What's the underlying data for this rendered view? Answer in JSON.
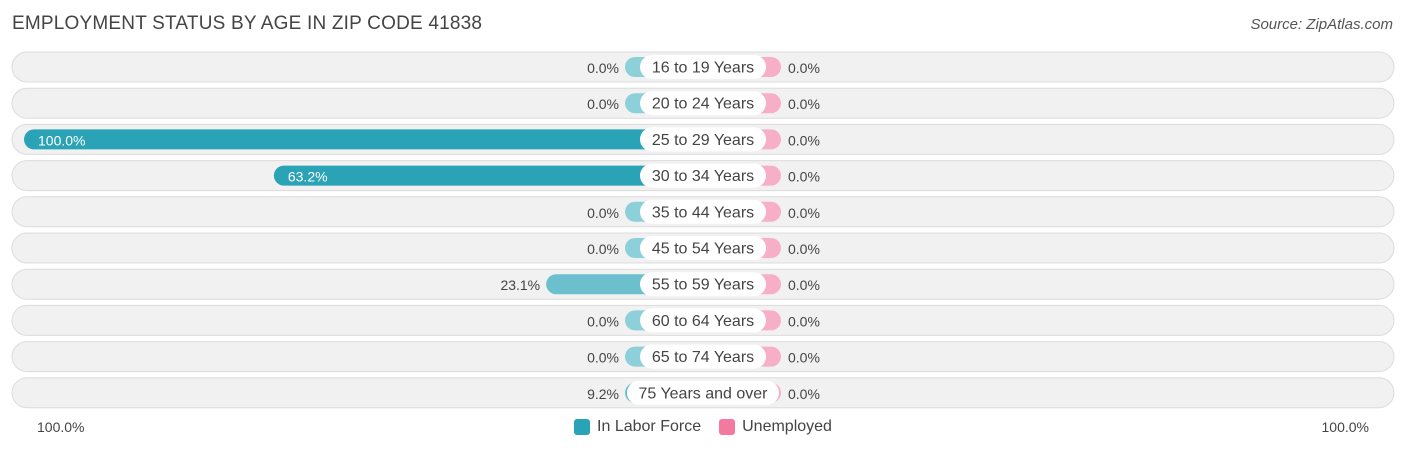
{
  "header": {
    "title": "EMPLOYMENT STATUS BY AGE IN ZIP CODE 41838",
    "source": "Source: ZipAtlas.com"
  },
  "colors": {
    "labor_force": "#2ba3b6",
    "labor_force_light": "#8dd0da",
    "unemployed": "#f27a9f",
    "unemployed_light": "#f6afc6",
    "track": "#f1f1f1",
    "track_border": "#dcdcdc"
  },
  "axis": {
    "left_label": "100.0%",
    "right_label": "100.0%"
  },
  "legend": {
    "labor_force": "In Labor Force",
    "unemployed": "Unemployed"
  },
  "chart_data": {
    "type": "bar",
    "title": "EMPLOYMENT STATUS BY AGE IN ZIP CODE 41838",
    "categories": [
      "16 to 19 Years",
      "20 to 24 Years",
      "25 to 29 Years",
      "30 to 34 Years",
      "35 to 44 Years",
      "45 to 54 Years",
      "55 to 59 Years",
      "60 to 64 Years",
      "65 to 74 Years",
      "75 Years and over"
    ],
    "series": [
      {
        "name": "In Labor Force",
        "values": [
          0.0,
          0.0,
          100.0,
          63.2,
          0.0,
          0.0,
          23.1,
          0.0,
          0.0,
          9.2
        ],
        "labels": [
          "0.0%",
          "0.0%",
          "100.0%",
          "63.2%",
          "0.0%",
          "0.0%",
          "23.1%",
          "0.0%",
          "0.0%",
          "9.2%"
        ]
      },
      {
        "name": "Unemployed",
        "values": [
          0.0,
          0.0,
          0.0,
          0.0,
          0.0,
          0.0,
          0.0,
          0.0,
          0.0,
          0.0
        ],
        "labels": [
          "0.0%",
          "0.0%",
          "0.0%",
          "0.0%",
          "0.0%",
          "0.0%",
          "0.0%",
          "0.0%",
          "0.0%",
          "0.0%"
        ]
      }
    ],
    "xlim": [
      -100,
      100
    ],
    "legend_position": "bottom-center"
  }
}
